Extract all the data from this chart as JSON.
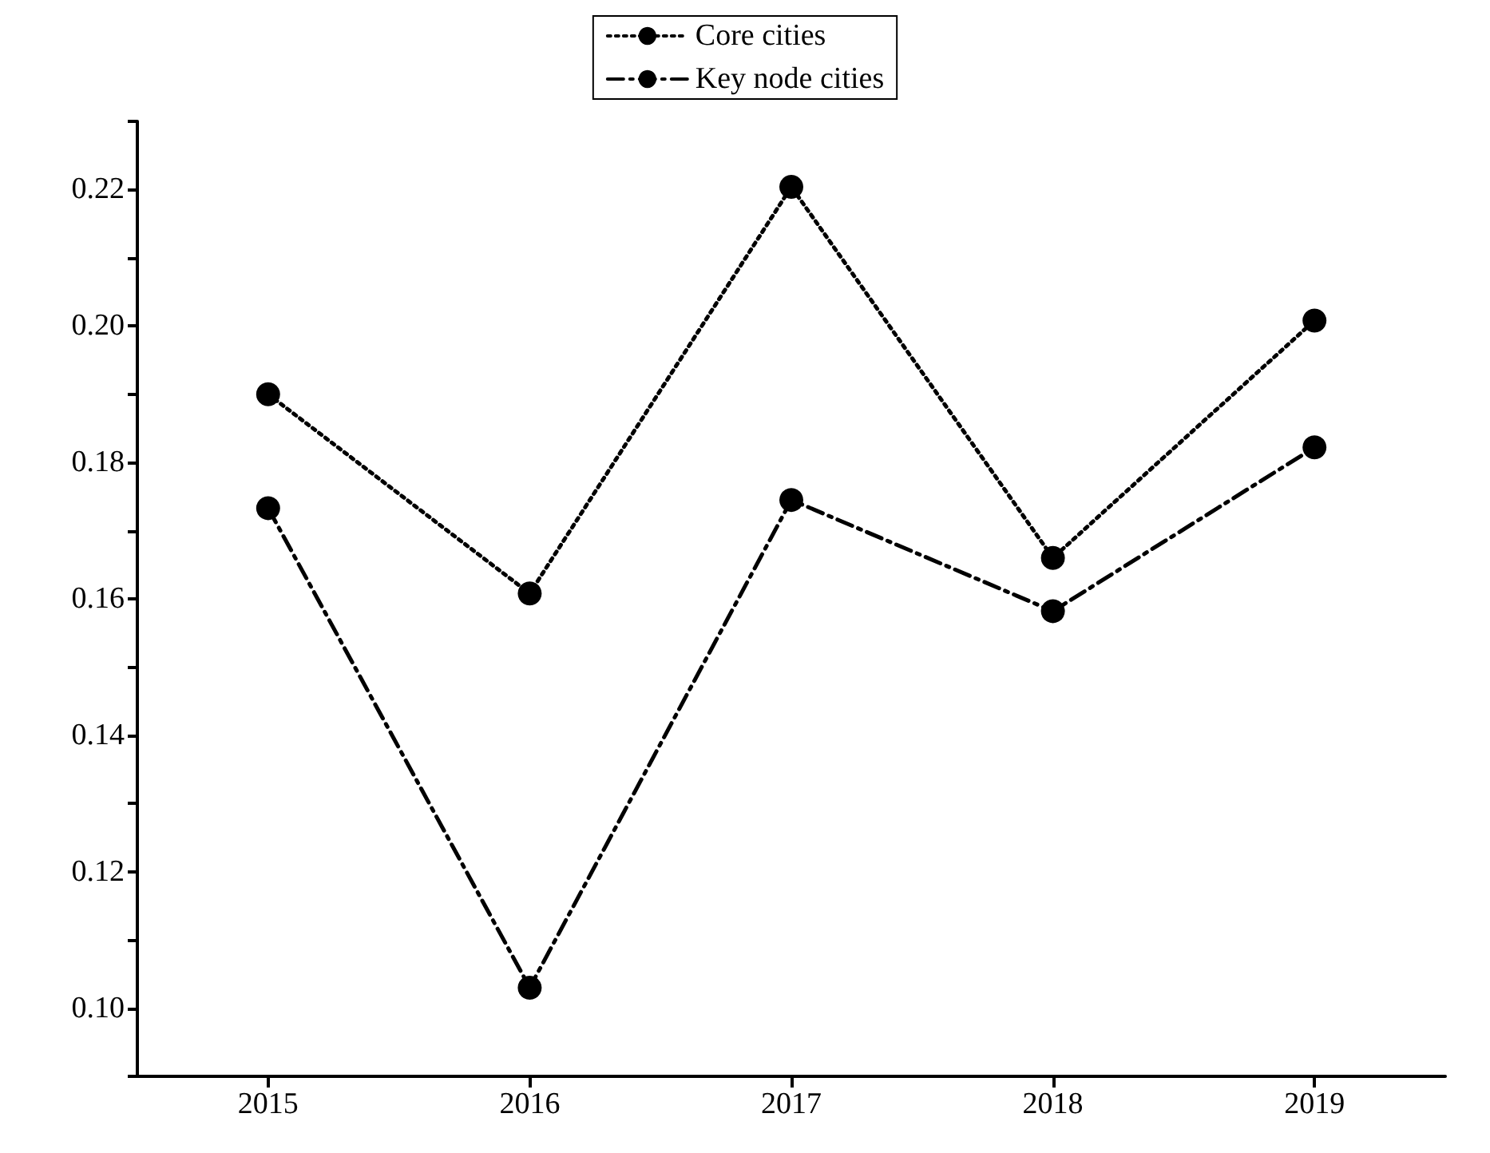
{
  "chart_data": {
    "type": "line",
    "categories": [
      "2015",
      "2016",
      "2017",
      "2018",
      "2019"
    ],
    "series": [
      {
        "name": "Core cities",
        "color": "#000000",
        "line_style": "dotted",
        "marker": "circle",
        "values": [
          0.19,
          0.1608,
          0.2204,
          0.166,
          0.2008
        ]
      },
      {
        "name": "Key node cities",
        "color": "#000000",
        "line_style": "dashed",
        "marker": "circle",
        "values": [
          0.1733,
          0.103,
          0.1745,
          0.1582,
          0.1822
        ]
      }
    ],
    "ylim": [
      0.09,
      0.23
    ],
    "yticks": [
      {
        "value": 0.09,
        "label": null
      },
      {
        "value": 0.1,
        "label": "0.10"
      },
      {
        "value": 0.11,
        "label": null
      },
      {
        "value": 0.12,
        "label": "0.12"
      },
      {
        "value": 0.13,
        "label": null
      },
      {
        "value": 0.14,
        "label": "0.14"
      },
      {
        "value": 0.15,
        "label": null
      },
      {
        "value": 0.16,
        "label": "0.16"
      },
      {
        "value": 0.17,
        "label": null
      },
      {
        "value": 0.18,
        "label": "0.18"
      },
      {
        "value": 0.19,
        "label": null
      },
      {
        "value": 0.2,
        "label": "0.20"
      },
      {
        "value": 0.21,
        "label": null
      },
      {
        "value": 0.22,
        "label": "0.22"
      },
      {
        "value": 0.23,
        "label": null
      }
    ],
    "grid": false,
    "legend": "top"
  }
}
